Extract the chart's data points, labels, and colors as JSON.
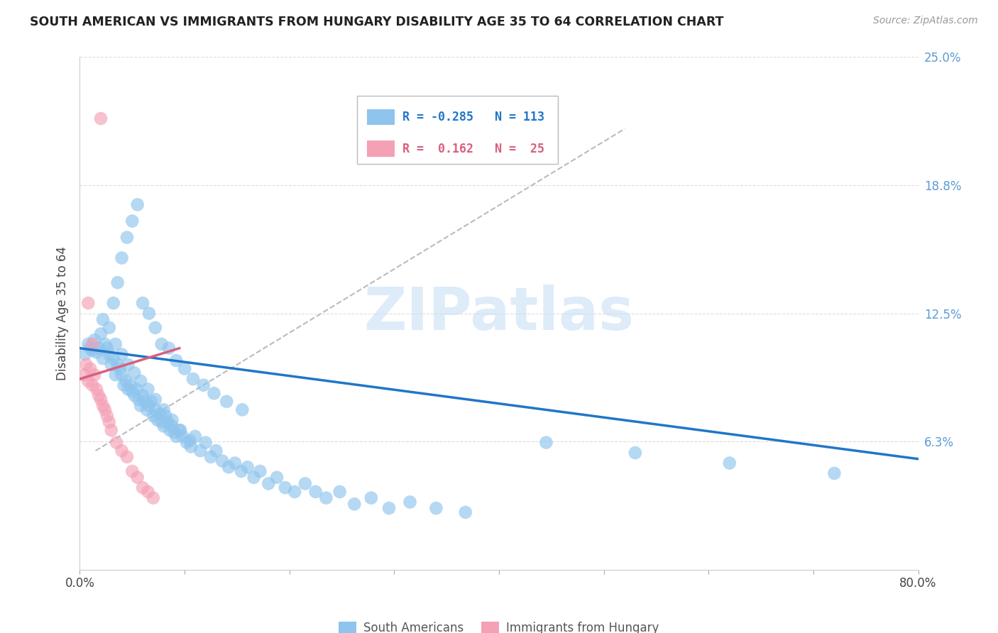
{
  "title": "SOUTH AMERICAN VS IMMIGRANTS FROM HUNGARY DISABILITY AGE 35 TO 64 CORRELATION CHART",
  "source": "Source: ZipAtlas.com",
  "ylabel": "Disability Age 35 to 64",
  "xlim": [
    0.0,
    0.8
  ],
  "ylim": [
    0.0,
    0.25
  ],
  "ytick_vals": [
    0.0,
    0.0625,
    0.125,
    0.1875,
    0.25
  ],
  "ytick_labels": [
    "",
    "6.3%",
    "12.5%",
    "18.8%",
    "25.0%"
  ],
  "xtick_vals": [
    0.0,
    0.1,
    0.2,
    0.3,
    0.4,
    0.5,
    0.6,
    0.7,
    0.8
  ],
  "xtick_labels": [
    "0.0%",
    "",
    "",
    "",
    "",
    "",
    "",
    "",
    "80.0%"
  ],
  "blue_R": -0.285,
  "blue_N": 113,
  "pink_R": 0.162,
  "pink_N": 25,
  "blue_color": "#8ec4ed",
  "pink_color": "#f4a0b5",
  "blue_line_color": "#2176c7",
  "pink_line_color": "#d95f7f",
  "dash_color": "#bbbbbb",
  "watermark_color": "#c8dff5",
  "watermark": "ZIPatlas",
  "legend_label_blue": "South Americans",
  "legend_label_pink": "Immigrants from Hungary",
  "blue_R_str": "-0.285",
  "blue_N_str": "113",
  "pink_R_str": "0.162",
  "pink_N_str": "25",
  "blue_line_x": [
    0.0,
    0.8
  ],
  "blue_line_y": [
    0.108,
    0.054
  ],
  "pink_line_x": [
    0.0,
    0.095
  ],
  "pink_line_y": [
    0.093,
    0.108
  ],
  "dash_line_x": [
    0.015,
    0.52
  ],
  "dash_line_y": [
    0.058,
    0.215
  ],
  "blue_points_x": [
    0.005,
    0.008,
    0.01,
    0.012,
    0.014,
    0.016,
    0.018,
    0.02,
    0.022,
    0.024,
    0.026,
    0.028,
    0.03,
    0.032,
    0.034,
    0.036,
    0.038,
    0.04,
    0.042,
    0.044,
    0.046,
    0.048,
    0.05,
    0.052,
    0.054,
    0.056,
    0.058,
    0.06,
    0.062,
    0.064,
    0.066,
    0.068,
    0.07,
    0.072,
    0.074,
    0.076,
    0.078,
    0.08,
    0.082,
    0.084,
    0.086,
    0.088,
    0.09,
    0.092,
    0.095,
    0.098,
    0.102,
    0.106,
    0.11,
    0.115,
    0.12,
    0.125,
    0.13,
    0.136,
    0.142,
    0.148,
    0.154,
    0.16,
    0.166,
    0.172,
    0.18,
    0.188,
    0.196,
    0.205,
    0.215,
    0.225,
    0.235,
    0.248,
    0.262,
    0.278,
    0.295,
    0.315,
    0.34,
    0.368,
    0.032,
    0.036,
    0.04,
    0.045,
    0.05,
    0.055,
    0.06,
    0.066,
    0.072,
    0.078,
    0.085,
    0.092,
    0.1,
    0.108,
    0.118,
    0.128,
    0.14,
    0.155,
    0.022,
    0.028,
    0.034,
    0.04,
    0.046,
    0.052,
    0.058,
    0.065,
    0.072,
    0.08,
    0.088,
    0.096,
    0.105,
    0.445,
    0.53,
    0.62,
    0.72
  ],
  "blue_points_y": [
    0.105,
    0.11,
    0.108,
    0.107,
    0.112,
    0.106,
    0.108,
    0.115,
    0.103,
    0.11,
    0.108,
    0.105,
    0.1,
    0.103,
    0.095,
    0.1,
    0.098,
    0.095,
    0.09,
    0.092,
    0.088,
    0.09,
    0.087,
    0.085,
    0.088,
    0.083,
    0.08,
    0.085,
    0.082,
    0.078,
    0.08,
    0.082,
    0.075,
    0.078,
    0.073,
    0.076,
    0.072,
    0.07,
    0.075,
    0.072,
    0.068,
    0.07,
    0.067,
    0.065,
    0.068,
    0.065,
    0.062,
    0.06,
    0.065,
    0.058,
    0.062,
    0.055,
    0.058,
    0.053,
    0.05,
    0.052,
    0.048,
    0.05,
    0.045,
    0.048,
    0.042,
    0.045,
    0.04,
    0.038,
    0.042,
    0.038,
    0.035,
    0.038,
    0.032,
    0.035,
    0.03,
    0.033,
    0.03,
    0.028,
    0.13,
    0.14,
    0.152,
    0.162,
    0.17,
    0.178,
    0.13,
    0.125,
    0.118,
    0.11,
    0.108,
    0.102,
    0.098,
    0.093,
    0.09,
    0.086,
    0.082,
    0.078,
    0.122,
    0.118,
    0.11,
    0.105,
    0.1,
    0.096,
    0.092,
    0.088,
    0.083,
    0.078,
    0.073,
    0.068,
    0.063,
    0.062,
    0.057,
    0.052,
    0.047
  ],
  "pink_points_x": [
    0.004,
    0.006,
    0.008,
    0.01,
    0.012,
    0.014,
    0.016,
    0.018,
    0.02,
    0.022,
    0.024,
    0.026,
    0.028,
    0.03,
    0.035,
    0.04,
    0.045,
    0.05,
    0.055,
    0.06,
    0.065,
    0.07,
    0.008,
    0.012,
    0.02
  ],
  "pink_points_y": [
    0.095,
    0.1,
    0.092,
    0.098,
    0.09,
    0.095,
    0.088,
    0.085,
    0.083,
    0.08,
    0.078,
    0.075,
    0.072,
    0.068,
    0.062,
    0.058,
    0.055,
    0.048,
    0.045,
    0.04,
    0.038,
    0.035,
    0.13,
    0.11,
    0.22
  ]
}
